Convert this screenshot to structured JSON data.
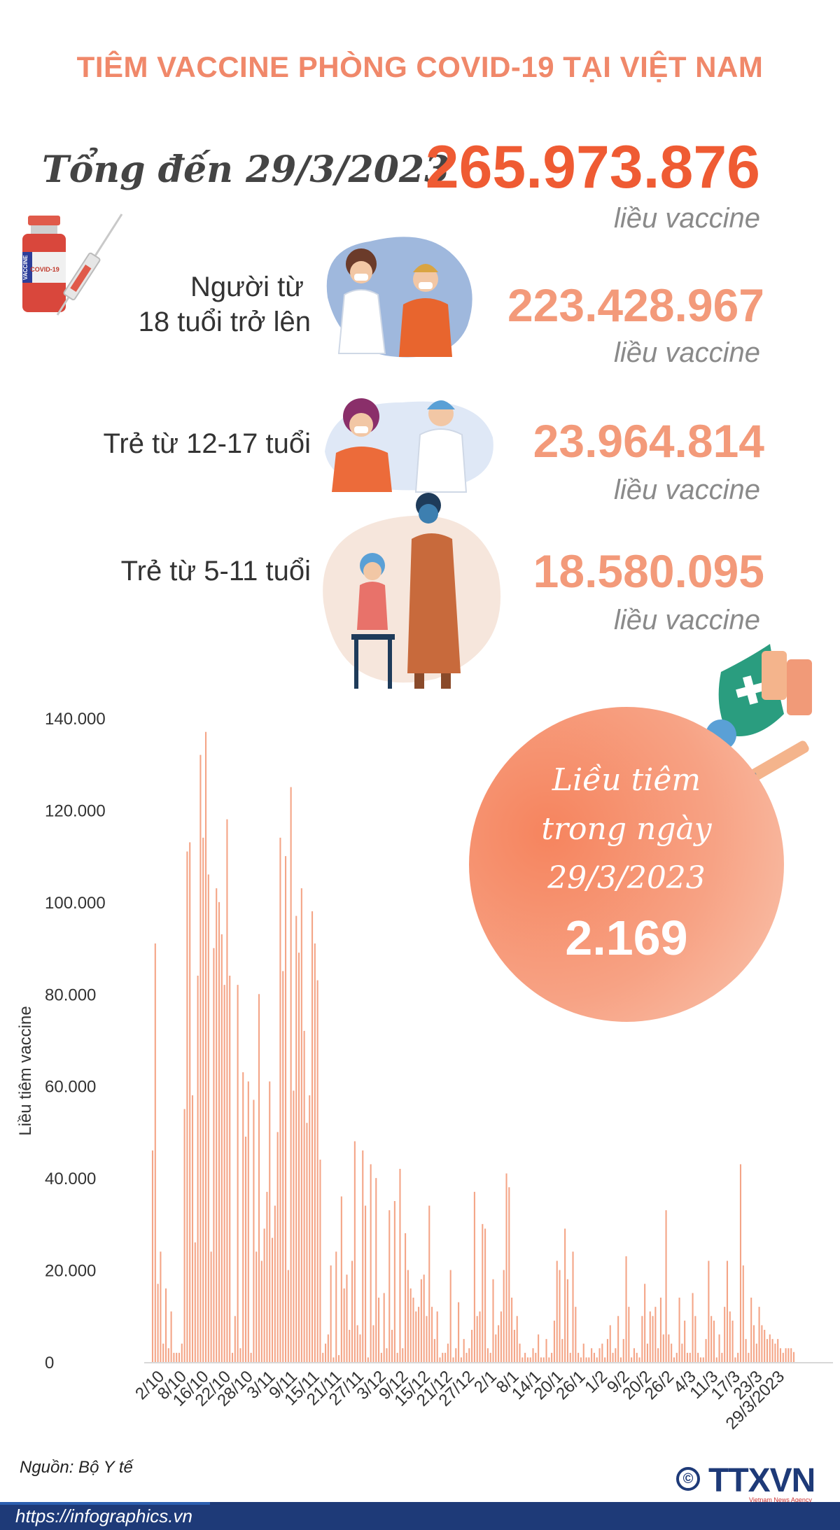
{
  "title": "TIÊM VACCINE PHÒNG COVID-19 TẠI VIỆT NAM",
  "total": {
    "label": "Tổng đến 29/3/2023",
    "value": "265.973.876",
    "unit": "liều vaccine"
  },
  "groups": [
    {
      "label_line1": "Người từ",
      "label_line2": "18 tuổi trở lên",
      "value": "223.428.967",
      "unit": "liều vaccine"
    },
    {
      "label": "Trẻ từ 12-17 tuổi",
      "value": "23.964.814",
      "unit": "liều vaccine"
    },
    {
      "label": "Trẻ từ 5-11 tuổi",
      "value": "18.580.095",
      "unit": "liều vaccine"
    }
  ],
  "vial_label": {
    "brand": "VACCINE",
    "name": "COVID-19"
  },
  "daily": {
    "line1": "Liều tiêm",
    "line2": "trong ngày",
    "line3": "29/3/2023",
    "value": "2.169"
  },
  "source": "Nguồn: Bộ Y tế",
  "url": "https://infographics.vn",
  "logo": {
    "text": "TTXVN",
    "sub": "Vietnam News Agency",
    "symbol": "©"
  },
  "colors": {
    "title": "#f0886a",
    "total": "#ef5b33",
    "group": "#f39a7a",
    "bar": "#f4a587",
    "footer": "#1e3a78"
  },
  "chart_data": {
    "type": "bar",
    "ylabel": "Liều tiêm vaccine",
    "ylim": [
      0,
      140000
    ],
    "yticks": [
      0,
      20000,
      40000,
      60000,
      80000,
      100000,
      120000,
      140000
    ],
    "ytick_labels": [
      "0",
      "20.000",
      "40.000",
      "60.000",
      "80.000",
      "100.000",
      "120.000",
      "140.000"
    ],
    "xtick_labels": [
      "2/10",
      "8/10",
      "16/10",
      "22/10",
      "28/10",
      "3/11",
      "9/11",
      "15/11",
      "21/11",
      "27/11",
      "3/12",
      "9/12",
      "15/12",
      "21/12",
      "27/12",
      "2/1",
      "8/1",
      "14/1",
      "20/1",
      "26/1",
      "1/2",
      "9/2",
      "20/2",
      "26/2",
      "4/3",
      "11/3",
      "17/3",
      "23/3",
      "29/3/2023"
    ],
    "grid": false,
    "values": [
      46000,
      91000,
      17000,
      24000,
      4000,
      16000,
      3000,
      11000,
      2000,
      2000,
      2000,
      4000,
      55000,
      111000,
      113000,
      58000,
      26000,
      84000,
      132000,
      114000,
      137000,
      106000,
      24000,
      90000,
      103000,
      100000,
      93000,
      82000,
      118000,
      84000,
      2000,
      10000,
      82000,
      3000,
      63000,
      49000,
      61000,
      2000,
      57000,
      24000,
      80000,
      22000,
      29000,
      37000,
      61000,
      27000,
      34000,
      50000,
      114000,
      85000,
      110000,
      20000,
      125000,
      59000,
      97000,
      89000,
      103000,
      72000,
      52000,
      58000,
      98000,
      91000,
      83000,
      44000,
      2000,
      4000,
      6000,
      21000,
      1000,
      24000,
      1500,
      36000,
      16000,
      19000,
      7000,
      22000,
      48000,
      8000,
      6000,
      46000,
      34000,
      1000,
      43000,
      8000,
      40000,
      14000,
      2000,
      15000,
      3000,
      33000,
      7000,
      35000,
      2000,
      42000,
      3000,
      28000,
      20000,
      16000,
      14000,
      11000,
      12000,
      18000,
      19000,
      10000,
      34000,
      12000,
      5000,
      11000,
      1000,
      2000,
      2000,
      4000,
      20000,
      1000,
      3000,
      13000,
      1000,
      5000,
      2000,
      3000,
      7000,
      37000,
      10000,
      11000,
      30000,
      29000,
      3000,
      2000,
      18000,
      6000,
      8000,
      11000,
      20000,
      41000,
      38000,
      14000,
      7000,
      10000,
      4000,
      1000,
      2000,
      1000,
      1000,
      3000,
      2000,
      6000,
      1000,
      1000,
      5000,
      1000,
      2000,
      9000,
      22000,
      20000,
      5000,
      29000,
      18000,
      2000,
      24000,
      12000,
      2000,
      1000,
      4000,
      1000,
      1000,
      3000,
      2000,
      1000,
      3000,
      4000,
      1000,
      5000,
      8000,
      2000,
      3000,
      10000,
      1000,
      5000,
      23000,
      12000,
      1000,
      3000,
      2000,
      1000,
      10000,
      17000,
      4000,
      11000,
      10000,
      12000,
      3000,
      14000,
      6000,
      33000,
      6000,
      4000,
      1000,
      2000,
      14000,
      4000,
      9000,
      2000,
      2000,
      15000,
      10000,
      2000,
      1000,
      1000,
      5000,
      22000,
      10000,
      9000,
      1000,
      6000,
      2000,
      12000,
      22000,
      11000,
      9000,
      1000,
      2000,
      43000,
      21000,
      5000,
      2000,
      14000,
      8000,
      4000,
      12000,
      8000,
      7000,
      5000,
      6000,
      5000,
      4000,
      5000,
      3000,
      2000,
      3000,
      3000,
      3000,
      2169
    ]
  }
}
